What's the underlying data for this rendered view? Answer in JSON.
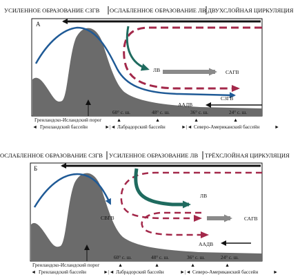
{
  "panels": [
    {
      "id": "A",
      "letter": "А",
      "headers": [
        "УСИЛЕННОЕ ОБРАЗОВАНИЕ СЗГВ",
        "ОСЛАБЛЕННОЕ ОБРАЗОВАНИЕ ЛВ",
        "ДВУХСЛОЙНАЯ ЦИРКУЛЯЦИЯ"
      ],
      "labels": {
        "lv": "ЛВ",
        "sagv": "САГВ",
        "szgv": "СЗГВ",
        "aadv": "ААДВ"
      },
      "latitudes": [
        "60° с. ш.",
        "48° с. ш.",
        "36° с. ш.",
        "24° с. ш."
      ],
      "threshold": "Гренландско-Исландский порог",
      "basins": [
        "Гренландский бассейн",
        "Лабрадорский бассейн",
        "Северо-Американский бассейн"
      ]
    },
    {
      "id": "B",
      "letter": "Б",
      "headers": [
        "ОСЛАБЛЕННОЕ ОБРАЗОВАНИЕ СЗГВ",
        "УСИЛЕННОЕ ОБРАЗОВАНИЕ ЛВ",
        "ТРЁХСЛОЙНАЯ ЦИРКУЛЯЦИЯ"
      ],
      "labels": {
        "lv": "ЛВ",
        "sagv": "САГВ",
        "svgv": "СВГВ",
        "aadv": "ААДВ"
      },
      "latitudes": [
        "60° с. ш.",
        "48° с. ш.",
        "36° с. ш.",
        "24° с. ш."
      ],
      "threshold": "Гренландско-Исландский порог",
      "basins": [
        "Гренландский бассейн",
        "Лабрадорский бассейн",
        "Северо-Американский бассейн"
      ]
    }
  ],
  "colors": {
    "topography": "#6b6b6b",
    "blue_current": "#1f5a96",
    "green_current": "#1f6b5f",
    "red_dashed": "#a3284a",
    "grey_arrow": "#8a8a8a",
    "black": "#111111"
  }
}
